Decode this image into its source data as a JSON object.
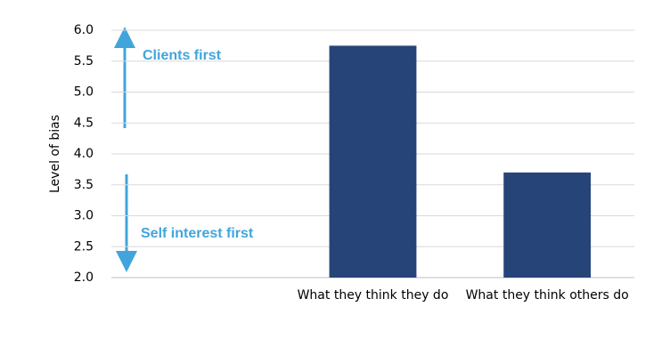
{
  "chart_data": {
    "type": "bar",
    "y_label": "Level of bias",
    "categories": [
      null,
      "What they think they do",
      "What they think others do"
    ],
    "values": [
      null,
      5.75,
      3.7
    ],
    "color": "#264478",
    "ylim": [
      2,
      6
    ],
    "yticks": [
      {
        "value": 2,
        "label": "2.0"
      },
      {
        "value": 2.5,
        "label": "2.5"
      },
      {
        "value": 3,
        "label": "3.0"
      },
      {
        "value": 3.5,
        "label": "3.5"
      },
      {
        "value": 4,
        "label": "4.0"
      },
      {
        "value": 4.5,
        "label": "4.5"
      },
      {
        "value": 5,
        "label": "5.0"
      },
      {
        "value": 5.5,
        "label": "5.5"
      },
      {
        "value": 6,
        "label": "6.0"
      }
    ],
    "grid": true,
    "annotations": [
      {
        "text": "Clients first",
        "color": "#41a5dc"
      },
      {
        "text": "Self interest first",
        "color": "#41a5dc"
      }
    ]
  }
}
